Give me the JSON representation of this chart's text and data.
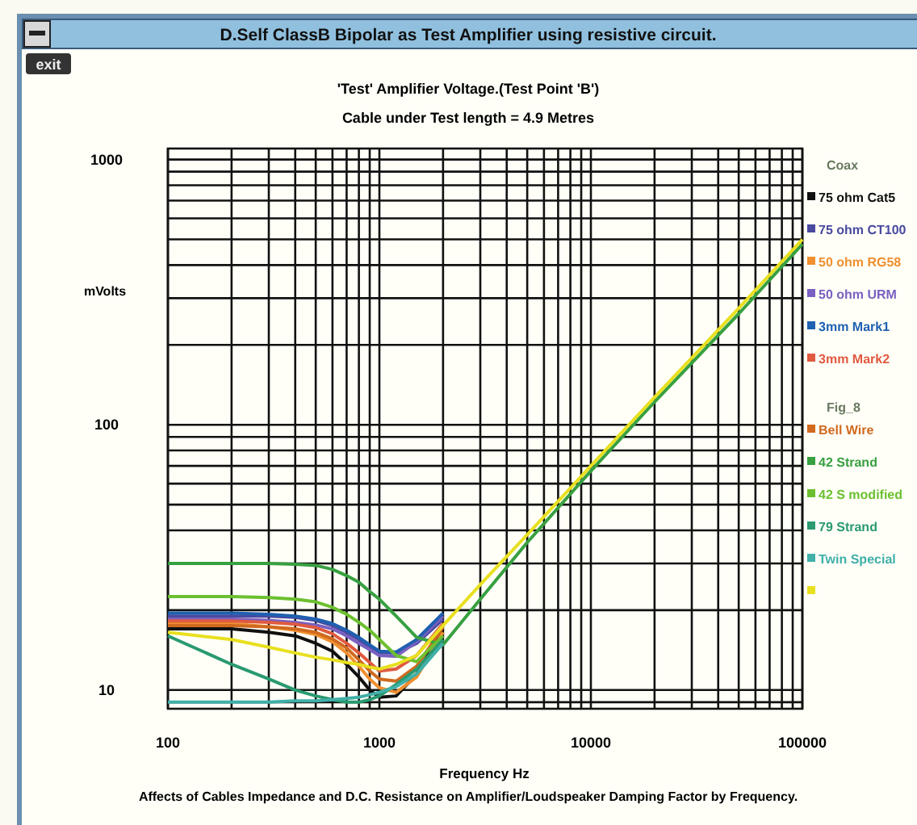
{
  "chart_data": {
    "type": "line",
    "title": "'Test' Amplifier Voltage.(Test Point 'B')",
    "subtitle": "Cable under Test length = 4.9 Metres",
    "xlabel": "Frequency Hz",
    "ylabel": "mVolts",
    "annotations": [
      "D.Self ClassB Bipolar as Test Amplifier using resistive circuit.",
      "exit",
      "Coax",
      "Fig_8",
      "Affects of Cables Impedance and D.C. Resistance on Amplifier/Loudspeaker Damping Factor by Frequency."
    ],
    "log": "xy",
    "grid": true,
    "legend": "right",
    "marker": "none",
    "line_style": "solid",
    "xlim": [
      100,
      100000
    ],
    "ylim": [
      8.5,
      1100
    ],
    "xticks": [
      100,
      {
        "value": 200,
        "label": null
      },
      {
        "value": 300,
        "label": null
      },
      {
        "value": 400,
        "label": null
      },
      {
        "value": 500,
        "label": null
      },
      {
        "value": 600,
        "label": null
      },
      {
        "value": 700,
        "label": null
      },
      {
        "value": 800,
        "label": null
      },
      {
        "value": 900,
        "label": null
      },
      1000,
      {
        "value": 2000,
        "label": null
      },
      {
        "value": 3000,
        "label": null
      },
      {
        "value": 4000,
        "label": null
      },
      {
        "value": 5000,
        "label": null
      },
      {
        "value": 6000,
        "label": null
      },
      {
        "value": 7000,
        "label": null
      },
      {
        "value": 8000,
        "label": null
      },
      {
        "value": 9000,
        "label": null
      },
      10000,
      {
        "value": 20000,
        "label": null
      },
      {
        "value": 30000,
        "label": null
      },
      {
        "value": 40000,
        "label": null
      },
      {
        "value": 50000,
        "label": null
      },
      {
        "value": 60000,
        "label": null
      },
      {
        "value": 70000,
        "label": null
      },
      {
        "value": 80000,
        "label": null
      },
      {
        "value": 90000,
        "label": null
      },
      100000
    ],
    "yticks": [
      {
        "value": 9,
        "label": null
      },
      10,
      {
        "value": 20,
        "label": null
      },
      {
        "value": 30,
        "label": null
      },
      {
        "value": 40,
        "label": null
      },
      {
        "value": 50,
        "label": null
      },
      {
        "value": 60,
        "label": null
      },
      {
        "value": 70,
        "label": null
      },
      {
        "value": 80,
        "label": null
      },
      {
        "value": 90,
        "label": null
      },
      100,
      {
        "value": 200,
        "label": null
      },
      {
        "value": 300,
        "label": null
      },
      {
        "value": 400,
        "label": null
      },
      {
        "value": 500,
        "label": null
      },
      {
        "value": 600,
        "label": null
      },
      {
        "value": 700,
        "label": null
      },
      {
        "value": 800,
        "label": null
      },
      {
        "value": 900,
        "label": null
      },
      1000
    ],
    "x": [
      100,
      200,
      300,
      400,
      500,
      600,
      700,
      800,
      900,
      1000,
      1200,
      1500,
      2000,
      3000,
      5000,
      10000,
      20000,
      50000,
      100000
    ],
    "series": [
      {
        "name": "75 ohm Cat5",
        "color": "#101010",
        "values": [
          17,
          17,
          16.5,
          16,
          15,
          14,
          12.5,
          11.2,
          10,
          9.4,
          9.5,
          11.5,
          17,
          null,
          null,
          null,
          null,
          null,
          null
        ]
      },
      {
        "name": "75 ohm CT100",
        "color": "#4a4aa0",
        "values": [
          19,
          19,
          19,
          18.8,
          18.3,
          17.5,
          16.5,
          15.5,
          14.5,
          13.8,
          13.8,
          15,
          18.5,
          null,
          null,
          null,
          null,
          null,
          null
        ]
      },
      {
        "name": "50 ohm RG58",
        "color": "#f09030",
        "values": [
          17.8,
          17.8,
          17.3,
          16.8,
          16.2,
          15.2,
          13.8,
          12.3,
          11,
          10.2,
          9.8,
          11.2,
          16.5,
          null,
          null,
          null,
          null,
          null,
          null
        ]
      },
      {
        "name": "50 ohm URM",
        "color": "#7a60c0",
        "values": [
          18.5,
          18.5,
          18.3,
          18,
          17.6,
          17,
          16,
          15,
          14.2,
          13.5,
          13.4,
          15.2,
          19,
          null,
          null,
          null,
          null,
          null,
          null
        ]
      },
      {
        "name": "3mm Mark1",
        "color": "#2060b0",
        "values": [
          19.5,
          19.5,
          19.3,
          19,
          18.5,
          17.8,
          16.8,
          15.8,
          14.8,
          14,
          13.9,
          15.5,
          19.5,
          null,
          null,
          null,
          null,
          null,
          null
        ]
      },
      {
        "name": "3mm Mark2",
        "color": "#e05a40",
        "values": [
          18.2,
          18.2,
          18,
          17.7,
          17.2,
          16.3,
          15,
          13.8,
          12.7,
          11.8,
          12,
          13.5,
          17.8,
          null,
          null,
          null,
          null,
          null,
          null
        ]
      },
      {
        "name": "Bell Wire",
        "color": "#d06a20",
        "values": [
          17.5,
          17.5,
          17.3,
          17,
          16.5,
          15.6,
          14.4,
          13,
          11.8,
          11,
          10.8,
          12.3,
          17.3,
          null,
          null,
          null,
          null,
          null,
          null
        ]
      },
      {
        "name": "42 Strand",
        "color": "#38a040",
        "values": [
          30,
          30,
          30,
          29.8,
          29.5,
          28.5,
          27,
          25.5,
          23.5,
          22,
          19,
          15.8,
          14.8,
          22,
          36,
          67,
          122,
          262,
          480
        ]
      },
      {
        "name": "42 S modified",
        "color": "#6cc030",
        "values": [
          22.5,
          22.5,
          22.3,
          22,
          21.5,
          20.5,
          19.3,
          18,
          16.8,
          15.5,
          13.5,
          12.8,
          16,
          null,
          null,
          null,
          null,
          null,
          null
        ]
      },
      {
        "name": "79 Strand",
        "color": "#2a9a70",
        "values": [
          16,
          12.5,
          11,
          10,
          9.5,
          9.2,
          9,
          9,
          9.2,
          9.5,
          10.5,
          12,
          15.5,
          null,
          null,
          null,
          null,
          null,
          null
        ]
      },
      {
        "name": "Twin Special",
        "color": "#40b0a8",
        "values": [
          9,
          9,
          9,
          9.1,
          9.1,
          9.2,
          9.3,
          9.4,
          9.6,
          9.8,
          10.3,
          11.5,
          15,
          null,
          null,
          null,
          null,
          null,
          null
        ]
      },
      {
        "color": "#e8e020",
        "values": [
          16.5,
          15.5,
          14.5,
          13.8,
          13.3,
          13,
          12.7,
          12.5,
          12.2,
          12,
          12.5,
          13.5,
          17.5,
          25,
          38.5,
          70,
          127,
          275,
          500
        ]
      }
    ]
  }
}
